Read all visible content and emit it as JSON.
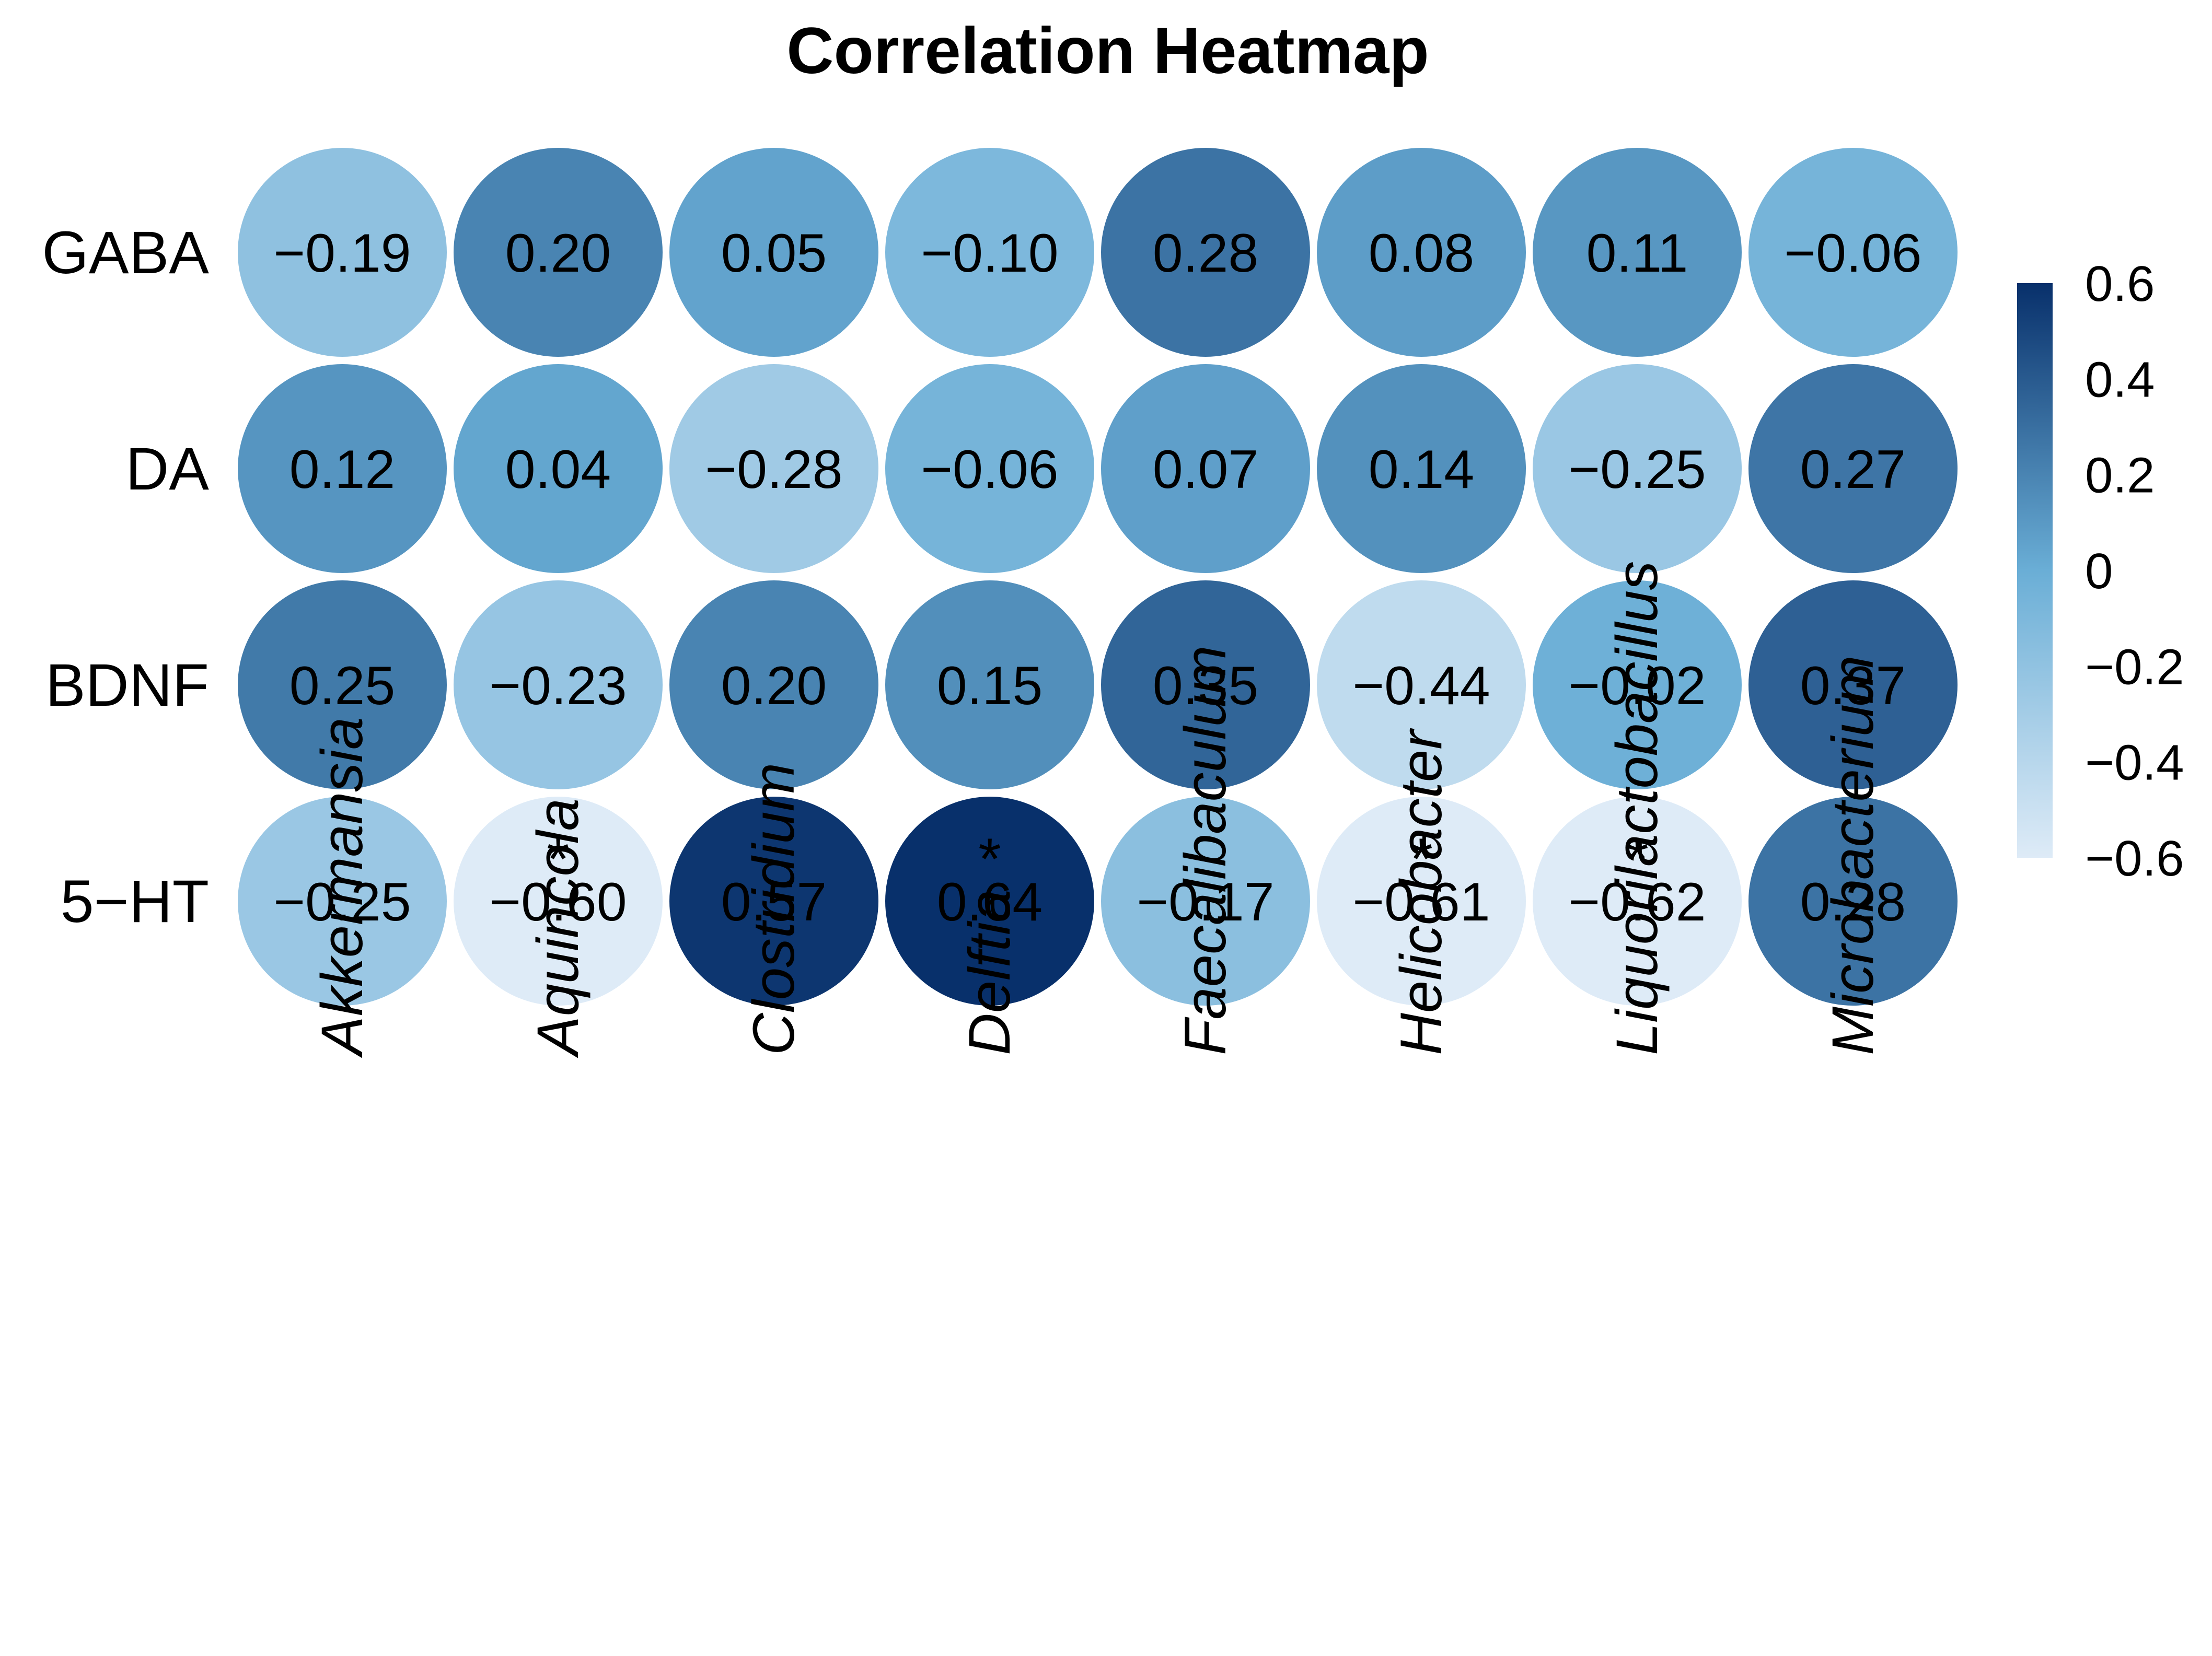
{
  "chart_data": {
    "type": "heatmap",
    "title": "Correlation Heatmap",
    "rows": [
      "GABA",
      "DA",
      "BDNF",
      "5−HT"
    ],
    "columns": [
      "Akkermansia",
      "Aquincola",
      "Clostridium",
      "Delftia",
      "Faecalibaculum",
      "Helicobacter",
      "Liquorilactobacillus",
      "Microbacterium"
    ],
    "values": [
      [
        -0.19,
        0.2,
        0.05,
        -0.1,
        0.28,
        0.08,
        0.11,
        -0.06
      ],
      [
        0.12,
        0.04,
        -0.28,
        -0.06,
        0.07,
        0.14,
        -0.25,
        0.27
      ],
      [
        0.25,
        -0.23,
        0.2,
        0.15,
        0.35,
        -0.44,
        -0.02,
        0.37
      ],
      [
        -0.25,
        -0.6,
        0.57,
        0.64,
        -0.17,
        -0.61,
        -0.62,
        0.28
      ]
    ],
    "value_labels": [
      [
        "−0.19",
        "0.20",
        "0.05",
        "−0.10",
        "0.28",
        "0.08",
        "0.11",
        "−0.06"
      ],
      [
        "0.12",
        "0.04",
        "−0.28",
        "−0.06",
        "0.07",
        "0.14",
        "−0.25",
        "0.27"
      ],
      [
        "0.25",
        "−0.23",
        "0.20",
        "0.15",
        "0.35",
        "−0.44",
        "−0.02",
        "0.37"
      ],
      [
        "−0.25",
        "−0.60",
        "0.57",
        "0.64",
        "−0.17",
        "−0.61",
        "−0.62",
        "0.28"
      ]
    ],
    "significance": [
      [
        "",
        "",
        "",
        "",
        "",
        "",
        "",
        ""
      ],
      [
        "",
        "",
        "",
        "",
        "",
        "",
        "",
        ""
      ],
      [
        "",
        "",
        "",
        "",
        "",
        "",
        "",
        ""
      ],
      [
        "",
        "*",
        "",
        "*",
        "",
        "*",
        "*",
        ""
      ]
    ],
    "color_scale": {
      "min": -0.6,
      "max": 0.6,
      "low_color": "#deebf7",
      "mid_color": "#6aaed6",
      "high_color": "#08306b",
      "ticks": [
        0.6,
        0.4,
        0.2,
        0,
        -0.2,
        -0.4,
        -0.6
      ],
      "tick_labels": [
        "0.6",
        "0.4",
        "0.2",
        "0",
        "−0.2",
        "−0.4",
        "−0.6"
      ]
    },
    "legend_placement": "right",
    "marker": "circle",
    "grid": false
  }
}
